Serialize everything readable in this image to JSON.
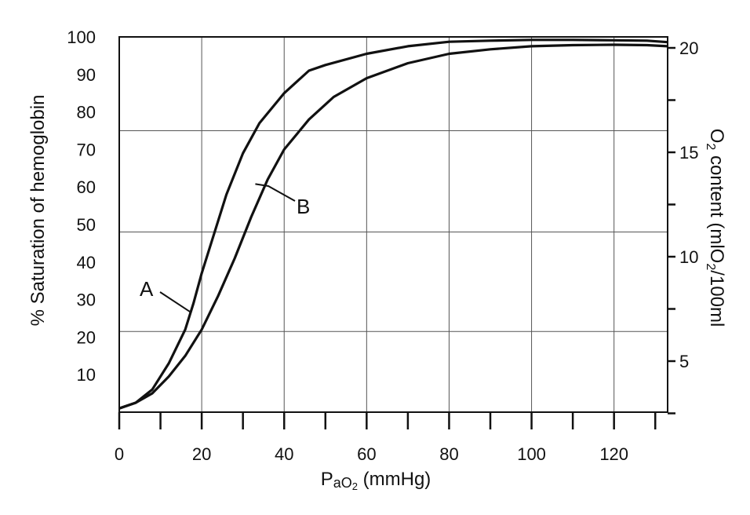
{
  "chart_data": {
    "type": "line",
    "xlabel_main": "P",
    "xlabel_sub": "aO",
    "xlabel_sub2": "2",
    "xlabel_unit": " (mmHg)",
    "ylabel": "% Saturation of hemoglobin",
    "y2label_a": "O",
    "y2label_b": "2",
    "y2label_c": " content (mlO",
    "y2label_d": "2",
    "y2label_e": "/100ml",
    "xlim": [
      0,
      133
    ],
    "ylim": [
      0,
      100
    ],
    "y2lim": [
      0,
      20
    ],
    "x_ticks": [
      0,
      20,
      40,
      60,
      80,
      100,
      120
    ],
    "x_minor_ticks": [
      10,
      30,
      50,
      70,
      90,
      110,
      130
    ],
    "y_ticks": [
      10,
      20,
      30,
      40,
      50,
      60,
      70,
      80,
      90,
      100
    ],
    "y2_ticks": [
      5,
      10,
      15,
      20
    ],
    "y2_minor_ticks": [
      2.5,
      7.5,
      12.5,
      17.5
    ],
    "x_gridlines": [
      20,
      40,
      60,
      80,
      100,
      120
    ],
    "y_gridlines": [
      21.5,
      48,
      75,
      100
    ],
    "series": [
      {
        "name": "A",
        "x": [
          0,
          4,
          8,
          12,
          16,
          18,
          20,
          22,
          26,
          30,
          34,
          40,
          46,
          50,
          60,
          70,
          80,
          90,
          100,
          110,
          120,
          128,
          133
        ],
        "y": [
          1,
          2.5,
          6,
          13,
          22,
          29,
          37,
          44,
          58,
          69,
          77,
          85,
          91,
          92.5,
          95.5,
          97.5,
          98.7,
          99,
          99.2,
          99.2,
          99.1,
          99,
          98.6
        ]
      },
      {
        "name": "B",
        "x": [
          0,
          4,
          8,
          12,
          16,
          20,
          24,
          28,
          32,
          36,
          40,
          46,
          52,
          60,
          70,
          80,
          90,
          100,
          110,
          120,
          128,
          133
        ],
        "y": [
          1,
          2.5,
          5,
          9.5,
          15,
          22,
          31,
          41,
          52,
          62,
          70,
          78,
          84,
          89,
          93,
          95.5,
          96.7,
          97.5,
          97.8,
          97.9,
          97.8,
          97.5
        ]
      }
    ],
    "annotations": [
      {
        "label": "A",
        "target_x": 17.5,
        "target_y": 26.5
      },
      {
        "label": "B",
        "target_x": 33,
        "target_y": 60.8
      }
    ]
  }
}
